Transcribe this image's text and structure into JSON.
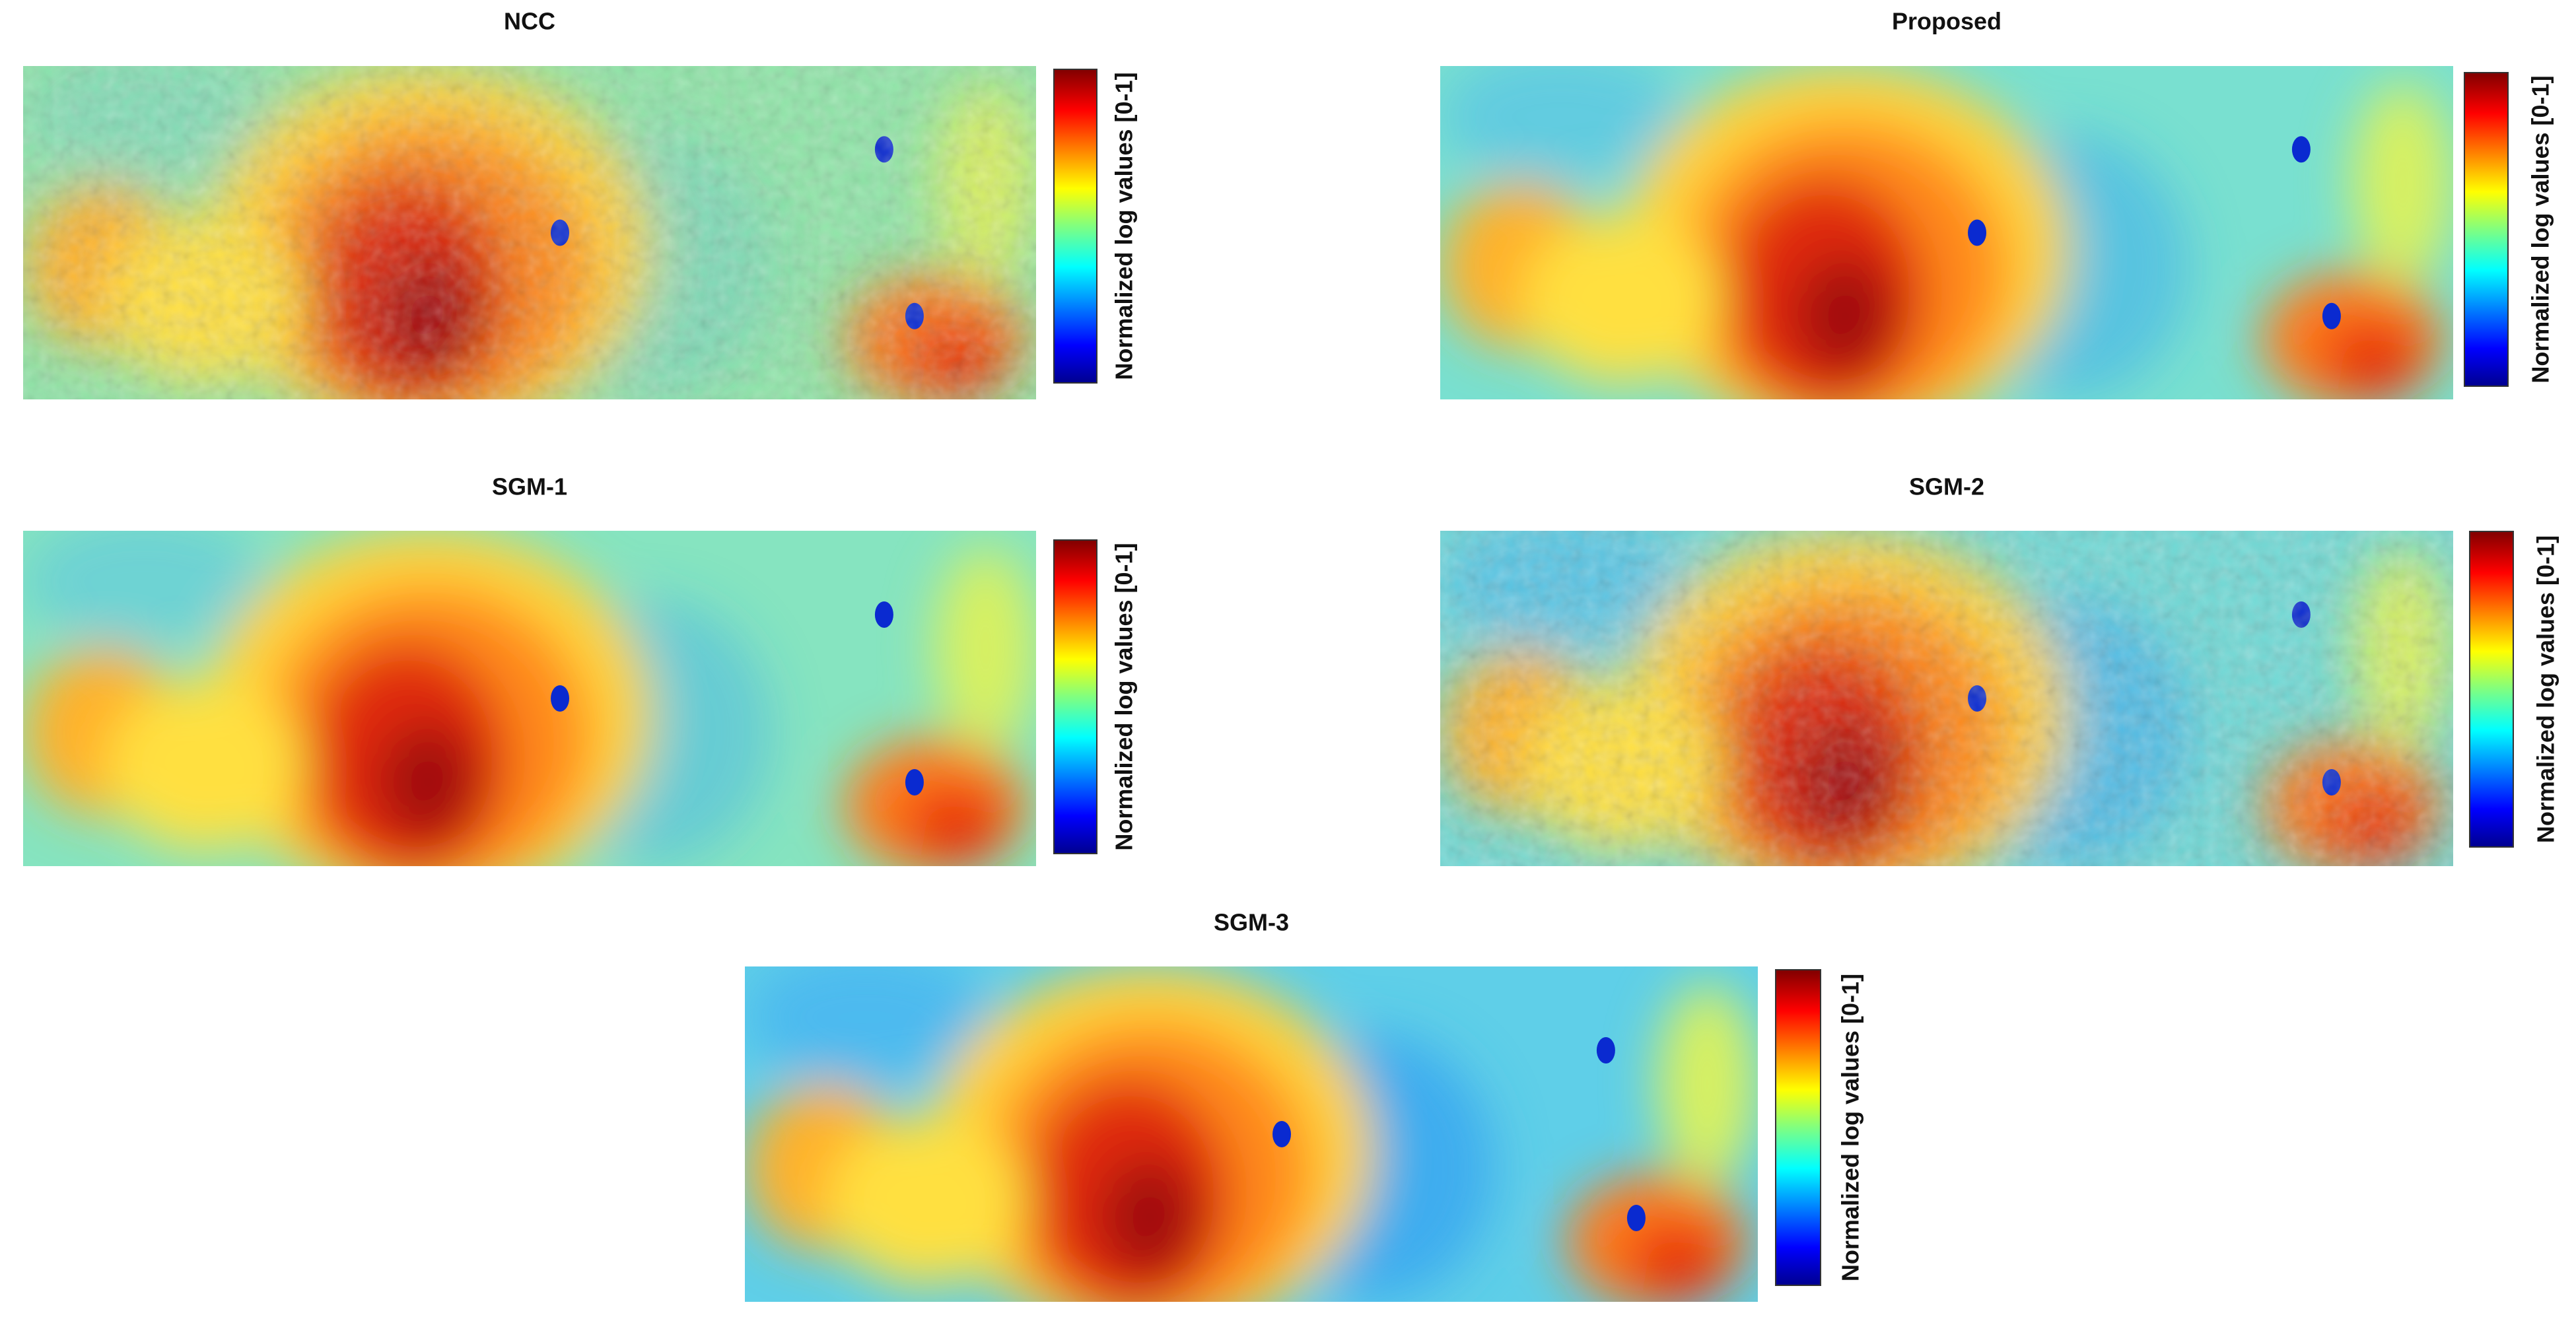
{
  "panels": [
    {
      "title": "NCC",
      "colorbar_label": "Normalized log values [0-1]"
    },
    {
      "title": "Proposed",
      "colorbar_label": "Normalized log values [0-1]"
    },
    {
      "title": "SGM-1",
      "colorbar_label": "Normalized log values [0-1]"
    },
    {
      "title": "SGM-2",
      "colorbar_label": "Normalized log values [0-1]"
    },
    {
      "title": "SGM-3",
      "colorbar_label": "Normalized log values [0-1]"
    }
  ]
}
